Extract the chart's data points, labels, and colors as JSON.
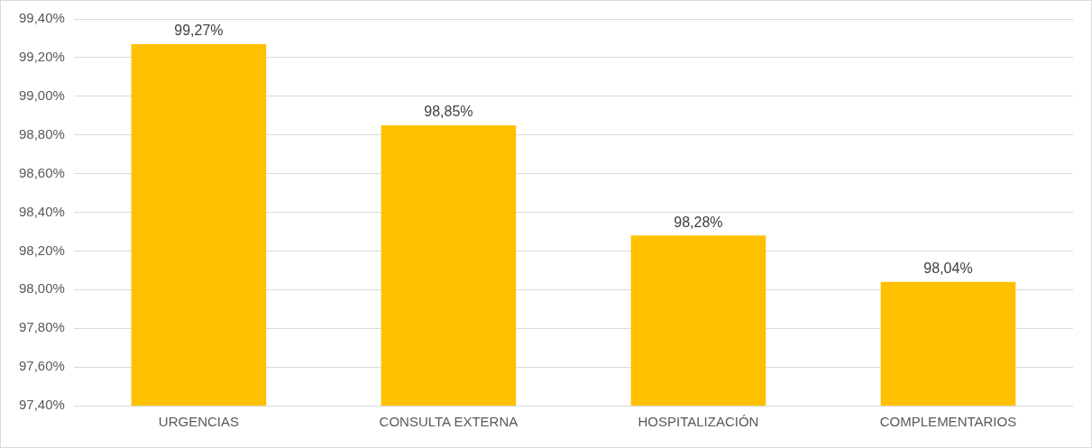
{
  "chart_data": {
    "type": "bar",
    "categories": [
      "URGENCIAS",
      "CONSULTA EXTERNA",
      "HOSPITALIZACIÓN",
      "COMPLEMENTARIOS"
    ],
    "values": [
      99.27,
      98.85,
      98.28,
      98.04
    ],
    "value_labels": [
      "99,27%",
      "98,85%",
      "98,28%",
      "98,04%"
    ],
    "color": "#ffc000",
    "ylim": [
      97.4,
      99.4
    ],
    "yticks": [
      {
        "value": 97.4,
        "label": "97,40%"
      },
      {
        "value": 97.6,
        "label": "97,60%"
      },
      {
        "value": 97.8,
        "label": "97,80%"
      },
      {
        "value": 98.0,
        "label": "98,00%"
      },
      {
        "value": 98.2,
        "label": "98,20%"
      },
      {
        "value": 98.4,
        "label": "98,40%"
      },
      {
        "value": 98.6,
        "label": "98,60%"
      },
      {
        "value": 98.8,
        "label": "98,80%"
      },
      {
        "value": 99.0,
        "label": "99,00%"
      },
      {
        "value": 99.2,
        "label": "99,20%"
      },
      {
        "value": 99.4,
        "label": "99,40%"
      }
    ],
    "grid": "y"
  }
}
